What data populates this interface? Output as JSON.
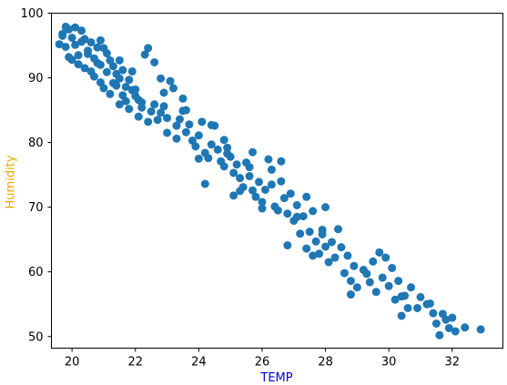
{
  "chart_data": {
    "type": "scatter",
    "title": "",
    "xlabel": "TEMP",
    "ylabel": "Humidity",
    "xlabel_color": "#0000cc",
    "ylabel_color": "#e6a800",
    "marker_color": "#1f77b4",
    "grid": false,
    "xlim": [
      19.35,
      33.6
    ],
    "ylim": [
      48.2,
      100
    ],
    "xticks": [
      20,
      22,
      24,
      26,
      28,
      30,
      32
    ],
    "yticks": [
      50,
      60,
      70,
      80,
      90,
      100
    ],
    "points": [
      [
        19.6,
        95.2
      ],
      [
        19.7,
        96.5
      ],
      [
        19.8,
        94.8
      ],
      [
        19.9,
        97.5
      ],
      [
        20.0,
        96.2
      ],
      [
        20.1,
        95.1
      ],
      [
        19.9,
        93.2
      ],
      [
        20.0,
        92.8
      ],
      [
        20.2,
        93.5
      ],
      [
        20.3,
        97.3
      ],
      [
        20.4,
        96.0
      ],
      [
        20.5,
        94.2
      ],
      [
        20.6,
        95.5
      ],
      [
        20.7,
        93.0
      ],
      [
        20.2,
        92.1
      ],
      [
        20.4,
        91.5
      ],
      [
        20.6,
        91.0
      ],
      [
        20.8,
        92.3
      ],
      [
        20.9,
        95.8
      ],
      [
        21.0,
        94.6
      ],
      [
        21.1,
        93.8
      ],
      [
        21.2,
        92.7
      ],
      [
        20.7,
        90.2
      ],
      [
        20.9,
        89.3
      ],
      [
        21.0,
        88.4
      ],
      [
        21.3,
        91.8
      ],
      [
        21.4,
        90.6
      ],
      [
        21.5,
        89.9
      ],
      [
        21.6,
        91.2
      ],
      [
        21.2,
        87.5
      ],
      [
        21.4,
        88.8
      ],
      [
        21.6,
        87.3
      ],
      [
        21.8,
        89.7
      ],
      [
        21.9,
        88.1
      ],
      [
        22.0,
        87.2
      ],
      [
        21.7,
        86.4
      ],
      [
        21.5,
        85.9
      ],
      [
        22.1,
        86.6
      ],
      [
        22.2,
        85.4
      ],
      [
        22.4,
        94.6
      ],
      [
        22.3,
        93.6
      ],
      [
        22.2,
        86.2
      ],
      [
        22.5,
        84.8
      ],
      [
        22.6,
        85.9
      ],
      [
        22.7,
        83.5
      ],
      [
        22.8,
        84.6
      ],
      [
        22.4,
        83.2
      ],
      [
        22.1,
        84.0
      ],
      [
        22.9,
        85.6
      ],
      [
        23.0,
        83.8
      ],
      [
        23.1,
        89.5
      ],
      [
        23.2,
        88.4
      ],
      [
        23.3,
        82.6
      ],
      [
        23.4,
        83.6
      ],
      [
        23.5,
        84.9
      ],
      [
        23.6,
        81.6
      ],
      [
        23.7,
        82.8
      ],
      [
        23.3,
        80.6
      ],
      [
        23.8,
        80.3
      ],
      [
        23.9,
        79.4
      ],
      [
        24.0,
        81.1
      ],
      [
        24.1,
        83.2
      ],
      [
        24.2,
        78.4
      ],
      [
        24.3,
        77.6
      ],
      [
        24.4,
        79.7
      ],
      [
        24.5,
        82.6
      ],
      [
        24.6,
        78.9
      ],
      [
        24.2,
        73.6
      ],
      [
        24.7,
        77.1
      ],
      [
        24.8,
        76.3
      ],
      [
        24.9,
        79.2
      ],
      [
        25.0,
        77.8
      ],
      [
        25.1,
        75.3
      ],
      [
        25.2,
        76.6
      ],
      [
        25.3,
        74.5
      ],
      [
        25.4,
        73.1
      ],
      [
        25.1,
        71.8
      ],
      [
        25.5,
        76.9
      ],
      [
        25.6,
        74.8
      ],
      [
        25.7,
        72.6
      ],
      [
        25.8,
        71.6
      ],
      [
        25.9,
        73.9
      ],
      [
        26.0,
        70.8
      ],
      [
        26.1,
        72.7
      ],
      [
        26.2,
        77.4
      ],
      [
        26.3,
        75.8
      ],
      [
        26.4,
        70.1
      ],
      [
        26.6,
        77.1
      ],
      [
        26.5,
        69.5
      ],
      [
        26.7,
        71.4
      ],
      [
        26.8,
        69.0
      ],
      [
        26.9,
        72.1
      ],
      [
        27.0,
        67.9
      ],
      [
        27.1,
        70.3
      ],
      [
        26.8,
        64.1
      ],
      [
        27.2,
        65.9
      ],
      [
        27.3,
        68.6
      ],
      [
        27.4,
        63.6
      ],
      [
        27.5,
        66.2
      ],
      [
        27.6,
        69.4
      ],
      [
        27.7,
        64.7
      ],
      [
        27.8,
        62.8
      ],
      [
        27.9,
        65.8
      ],
      [
        28.0,
        63.9
      ],
      [
        28.1,
        61.5
      ],
      [
        28.2,
        64.6
      ],
      [
        28.3,
        62.2
      ],
      [
        28.4,
        66.6
      ],
      [
        28.6,
        59.8
      ],
      [
        28.7,
        62.5
      ],
      [
        28.8,
        58.6
      ],
      [
        28.9,
        60.9
      ],
      [
        29.0,
        57.6
      ],
      [
        29.2,
        60.3
      ],
      [
        29.4,
        58.4
      ],
      [
        29.5,
        61.6
      ],
      [
        29.6,
        56.9
      ],
      [
        29.8,
        59.1
      ],
      [
        29.9,
        62.2
      ],
      [
        30.0,
        57.8
      ],
      [
        30.2,
        55.7
      ],
      [
        30.3,
        58.6
      ],
      [
        30.4,
        53.2
      ],
      [
        30.5,
        56.3
      ],
      [
        30.7,
        57.6
      ],
      [
        30.9,
        54.4
      ],
      [
        31.0,
        56.1
      ],
      [
        31.2,
        55.0
      ],
      [
        31.4,
        53.6
      ],
      [
        31.5,
        52.0
      ],
      [
        31.6,
        50.2
      ],
      [
        31.7,
        53.5
      ],
      [
        31.9,
        51.3
      ],
      [
        32.0,
        52.9
      ],
      [
        32.1,
        50.8
      ],
      [
        32.4,
        51.4
      ],
      [
        32.9,
        51.1
      ],
      [
        19.8,
        97.9
      ],
      [
        20.1,
        97.8
      ],
      [
        20.5,
        93.7
      ],
      [
        20.8,
        94.7
      ],
      [
        21.1,
        90.9
      ],
      [
        21.3,
        89.2
      ],
      [
        21.7,
        88.6
      ],
      [
        22.0,
        88.2
      ],
      [
        22.6,
        92.4
      ],
      [
        22.9,
        87.7
      ],
      [
        23.5,
        86.8
      ],
      [
        24.4,
        82.7
      ],
      [
        24.9,
        78.3
      ],
      [
        25.6,
        76.2
      ],
      [
        26.3,
        73.5
      ],
      [
        27.1,
        68.5
      ],
      [
        27.9,
        66.5
      ],
      [
        28.5,
        63.8
      ],
      [
        29.3,
        59.7
      ],
      [
        30.1,
        60.6
      ],
      [
        30.6,
        54.4
      ],
      [
        31.3,
        55.1
      ],
      [
        29.7,
        63.0
      ],
      [
        28.0,
        70.0
      ],
      [
        27.4,
        71.6
      ],
      [
        26.6,
        74.0
      ],
      [
        25.7,
        78.5
      ],
      [
        24.8,
        80.4
      ],
      [
        23.6,
        85.0
      ],
      [
        22.8,
        89.9
      ],
      [
        21.9,
        91.0
      ],
      [
        21.5,
        92.7
      ],
      [
        20.3,
        95.6
      ],
      [
        19.7,
        96.8
      ],
      [
        20.9,
        92.0
      ],
      [
        21.8,
        85.2
      ],
      [
        23.0,
        81.5
      ],
      [
        24.0,
        77.5
      ],
      [
        25.3,
        72.5
      ],
      [
        26.0,
        69.8
      ],
      [
        27.6,
        62.5
      ],
      [
        28.8,
        56.5
      ],
      [
        30.4,
        56.2
      ],
      [
        31.8,
        52.6
      ]
    ]
  }
}
